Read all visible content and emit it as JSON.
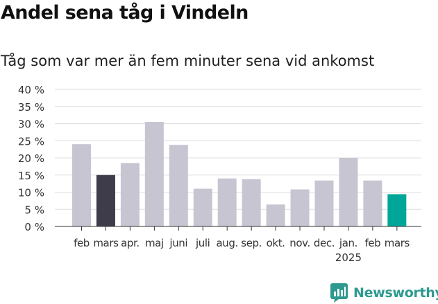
{
  "title": "Andel sena tåg i Vindeln",
  "subtitle": "Tåg som var mer än fem minuter sena vid ankomst",
  "brand": "Newsworthy",
  "colors": {
    "default_bar": "#c7c5d1",
    "highlight_prev": "#3e3c4a",
    "highlight_current": "#00a698",
    "grid": "#dedede",
    "brand": "#2e9a8f"
  },
  "chart_data": {
    "type": "bar",
    "categories": [
      "feb",
      "mars",
      "apr.",
      "maj",
      "juni",
      "juli",
      "aug.",
      "sep.",
      "okt.",
      "nov.",
      "dec.",
      "jan.",
      "feb",
      "mars"
    ],
    "year_label": "2025",
    "year_label_under_index": 11,
    "values": [
      24,
      15,
      18.5,
      30.5,
      23.8,
      11,
      14,
      13.8,
      6.4,
      10.8,
      13.4,
      20,
      13.4,
      9.4
    ],
    "highlight": {
      "1": "highlight_prev",
      "13": "highlight_current"
    },
    "yticks": [
      "0 %",
      "5 %",
      "10 %",
      "15 %",
      "20 %",
      "25 %",
      "30 %",
      "35 %",
      "40 %"
    ],
    "ylim": [
      0,
      40
    ],
    "xlabel": "",
    "ylabel": "",
    "grid": true,
    "legend": "none"
  }
}
